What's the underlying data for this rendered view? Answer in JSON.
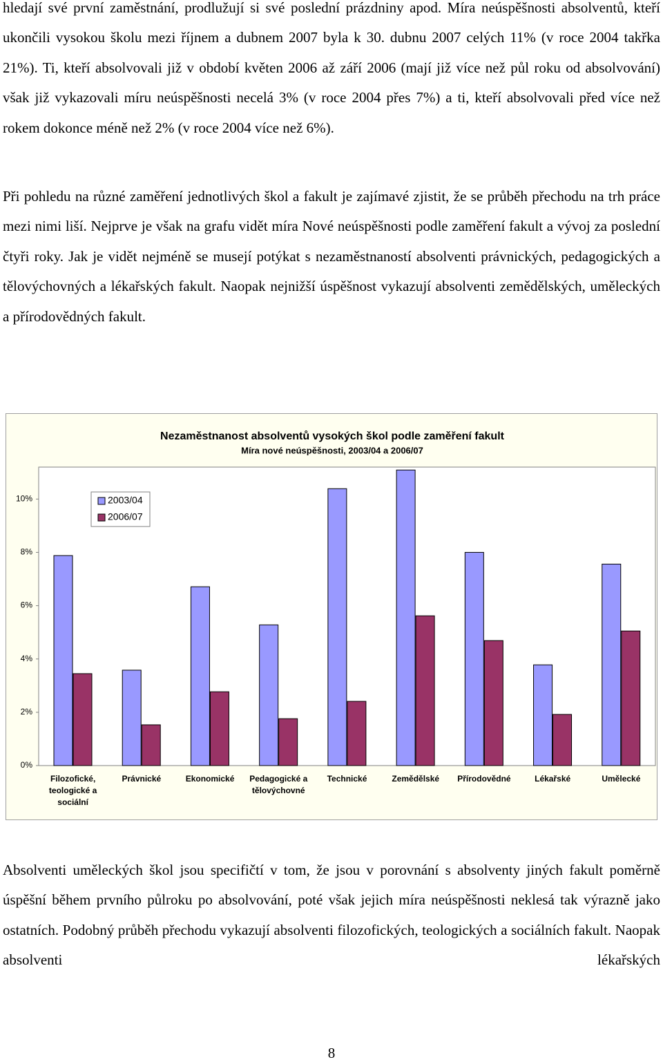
{
  "paragraphs": [
    "hledají své první zaměstnání, prodlužují si své poslední prázdniny apod. Míra neúspěšnosti absolventů, kteří ukončili vysokou školu mezi říjnem a dubnem 2007 byla k 30. dubnu 2007 celých 11% (v roce 2004 takřka 21%). Ti, kteří absolvovali již v období květen 2006 až září 2006 (mají již více než půl roku od absolvování) však již vykazovali míru neúspěšnosti necelá 3% (v roce 2004 přes 7%) a  ti, kteří absolvovali před více než rokem dokonce méně než 2% (v roce 2004 více než 6%).",
    "Při pohledu na různé zaměření jednotlivých škol a fakult je zajímavé zjistit, že se průběh přechodu na trh práce mezi nimi liší. Nejprve je však na grafu vidět míra Nové neúspěšnosti podle zaměření fakult a vývoj za poslední čtyři roky. Jak je vidět nejméně se musejí potýkat s nezaměstnaností absolventi právnických, pedagogických a tělovýchovných a lékařských fakult. Naopak nejnižší úspěšnost vykazují absolventi zemědělských, uměleckých a přírodovědných fakult."
  ],
  "chart_data": {
    "type": "bar",
    "title": "Nezaměstnanost absolventů vysokých škol podle zaměření fakult",
    "subtitle": "Míra nové neúspěšnosti, 2003/04 a 2006/07",
    "categories": [
      "Filozofické, teologické a sociální",
      "Právnické",
      "Ekonomické",
      "Pedagogické a tělovýchovné",
      "Technické",
      "Zemědělské",
      "Přírodovědné",
      "Lékařské",
      "Umělecké"
    ],
    "series": [
      {
        "name": "2003/04",
        "color": "#9999ff",
        "values": [
          7.88,
          3.58,
          6.71,
          5.28,
          10.39,
          11.09,
          8.0,
          3.78,
          7.56
        ]
      },
      {
        "name": "2006/07",
        "color": "#993366",
        "values": [
          3.45,
          1.53,
          2.77,
          1.76,
          2.41,
          5.62,
          4.69,
          1.92,
          5.05
        ]
      }
    ],
    "ylim": [
      0,
      11.2
    ],
    "yticks": [
      {
        "value": 0,
        "label": "0%"
      },
      {
        "value": 2,
        "label": "2%"
      },
      {
        "value": 4,
        "label": "4%"
      },
      {
        "value": 6,
        "label": "6%"
      },
      {
        "value": 8,
        "label": "8%"
      },
      {
        "value": 10,
        "label": "10%"
      }
    ],
    "legend": "upper left"
  },
  "after_chart": "Absolventi uměleckých škol jsou specifičtí v tom, že jsou v porovnání s absolventy jiných fakult poměrně úspěšní během prvního půlroku po absolvování, poté však jejich míra neúspěšnosti neklesá tak výrazně jako ostatních. Podobný průběh přechodu vykazují absolventi filozofických, teologických a sociálních fakult. Naopak absolventi lékařských",
  "page_number": "8"
}
